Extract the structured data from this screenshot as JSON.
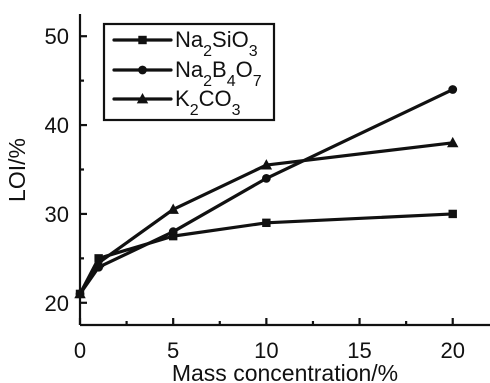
{
  "chart_data": {
    "type": "line",
    "title": "",
    "xlabel": "Mass concentration/%",
    "ylabel": "LOI/%",
    "xlim": [
      0,
      22
    ],
    "ylim": [
      17.5,
      52.5
    ],
    "x_ticks": [
      0,
      5,
      10,
      15,
      20
    ],
    "y_ticks": [
      20,
      30,
      40,
      50
    ],
    "grid": false,
    "legend_position": "top-left",
    "series": [
      {
        "name": "Na2SiO3",
        "legend": {
          "parts": [
            {
              "text": "Na",
              "sub": false
            },
            {
              "text": "2",
              "sub": true
            },
            {
              "text": "SiO",
              "sub": false
            },
            {
              "text": "3",
              "sub": true
            }
          ]
        },
        "marker": "square",
        "x": [
          0,
          1,
          5,
          10,
          20
        ],
        "values": [
          21,
          25,
          27.5,
          29,
          30
        ]
      },
      {
        "name": "Na2B4O7",
        "legend": {
          "parts": [
            {
              "text": "Na",
              "sub": false
            },
            {
              "text": "2",
              "sub": true
            },
            {
              "text": "B",
              "sub": false
            },
            {
              "text": "4",
              "sub": true
            },
            {
              "text": "O",
              "sub": false
            },
            {
              "text": "7",
              "sub": true
            }
          ]
        },
        "marker": "circle",
        "x": [
          0,
          1,
          5,
          10,
          20
        ],
        "values": [
          21,
          24,
          28,
          34,
          44
        ]
      },
      {
        "name": "K2CO3",
        "legend": {
          "parts": [
            {
              "text": "K",
              "sub": false
            },
            {
              "text": "2",
              "sub": true
            },
            {
              "text": "CO",
              "sub": false
            },
            {
              "text": "3",
              "sub": true
            }
          ]
        },
        "marker": "triangle",
        "x": [
          0,
          1,
          5,
          10,
          20
        ],
        "values": [
          21,
          24.5,
          30.5,
          35.5,
          38
        ]
      }
    ],
    "colors": {
      "line": "#111111",
      "background": "#ffffff"
    }
  }
}
